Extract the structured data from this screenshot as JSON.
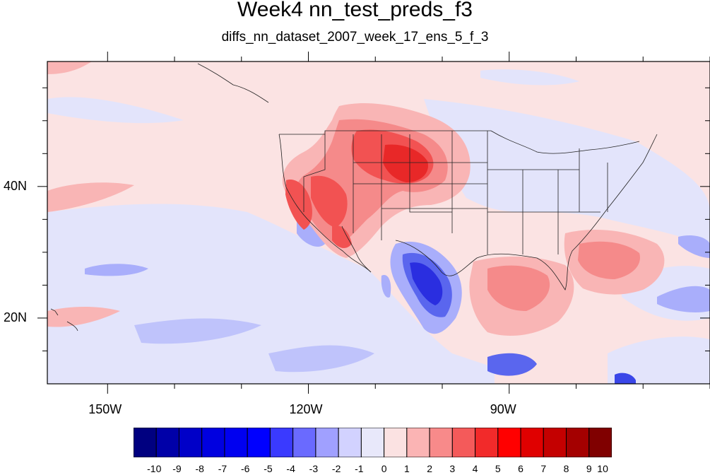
{
  "title": "Week4 nn_test_preds_f3",
  "subtitle": "diffs_nn_dataset_2007_week_17_ens_5_f_3",
  "axes": {
    "x_ticks": [
      {
        "label": "150W",
        "lon": -150
      },
      {
        "label": "120W",
        "lon": -120
      },
      {
        "label": "90W",
        "lon": -90
      }
    ],
    "y_ticks": [
      {
        "label": "40N",
        "lat": 40
      },
      {
        "label": "20N",
        "lat": 20
      }
    ],
    "lon_range": [
      -159,
      -60
    ],
    "lat_range": [
      10,
      59
    ]
  },
  "colorbar": {
    "labels": [
      "-10",
      "-9",
      "-8",
      "-7",
      "-6",
      "-5",
      "-4",
      "-3",
      "-2",
      "-1",
      "0",
      "1",
      "2",
      "3",
      "4",
      "5",
      "6",
      "7",
      "8",
      "9",
      "10"
    ],
    "colors": [
      "#000080",
      "#0000a8",
      "#0000c8",
      "#0000e0",
      "#0000f0",
      "#0000ff",
      "#3a3aff",
      "#6a6aff",
      "#a0a0ff",
      "#d2d2ff",
      "#e8e8fa",
      "#fbe2e2",
      "#fbb4b4",
      "#f88a8a",
      "#f45a5a",
      "#f22a2a",
      "#ff0000",
      "#e00000",
      "#c40000",
      "#a40000",
      "#800000"
    ]
  },
  "colors": {
    "background_field": "#fbe3e3",
    "ocean_negative": "#e3e4fb",
    "strong_negative": "#3a46e8",
    "strong_positive": "#e83a3a"
  }
}
